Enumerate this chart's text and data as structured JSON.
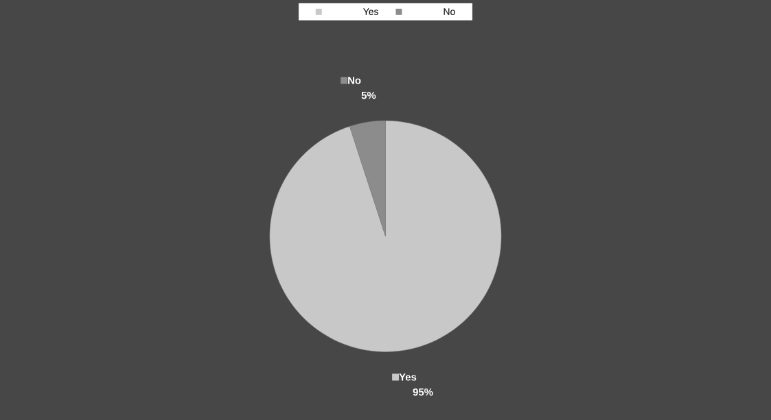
{
  "chart_data": {
    "type": "pie",
    "categories": [
      "Yes",
      "No"
    ],
    "values": [
      95,
      5
    ],
    "value_labels": [
      "95%",
      "5%"
    ],
    "colors": [
      "#c8c8c8",
      "#8c8c8c"
    ],
    "legend": "top"
  }
}
